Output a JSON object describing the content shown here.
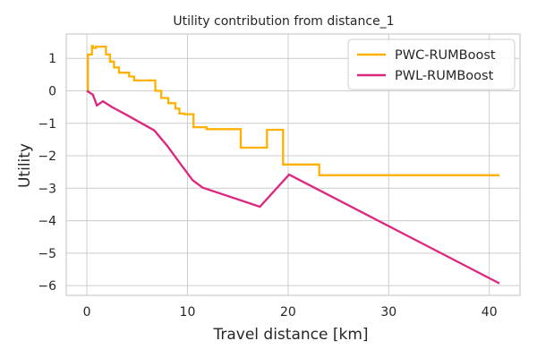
{
  "chart_data": {
    "type": "line",
    "title": "Utility contribution from distance_1",
    "xlabel": "Travel distance [km]",
    "ylabel": "Utility",
    "xlim": [
      -2.05,
      43.05
    ],
    "ylim": [
      -6.3,
      1.75
    ],
    "xticks": [
      0,
      10,
      20,
      30,
      40
    ],
    "xtick_labels": [
      "0",
      "10",
      "20",
      "30",
      "40"
    ],
    "yticks": [
      1,
      0,
      -1,
      -2,
      -3,
      -4,
      -5,
      -6
    ],
    "ytick_labels": [
      "1",
      "0",
      "−1",
      "−2",
      "−3",
      "−4",
      "−5",
      "−6"
    ],
    "grid": true,
    "legend_position": "top-right",
    "series": [
      {
        "name": "PWC-RUMBoost",
        "color": "#FFB000",
        "step": true,
        "x": [
          0,
          0.1,
          0.5,
          0.6,
          0.9,
          1.9,
          2.3,
          2.7,
          3.2,
          4.2,
          4.7,
          6.8,
          7.4,
          8.1,
          8.8,
          9.2,
          9.7,
          10.6,
          11.9,
          15.3,
          17.9,
          19.5,
          23.1,
          41
        ],
        "y": [
          0,
          1.12,
          1.38,
          1.32,
          1.36,
          1.12,
          0.9,
          0.72,
          0.56,
          0.44,
          0.32,
          0.0,
          -0.22,
          -0.38,
          -0.55,
          -0.7,
          -0.72,
          -1.12,
          -1.18,
          -1.75,
          -1.2,
          -2.27,
          -2.6,
          -2.6
        ]
      },
      {
        "name": "PWL-RUMBoost",
        "color": "#DC267F",
        "step": false,
        "x": [
          0,
          0.6,
          1.0,
          1.6,
          2.5,
          4.0,
          6.7,
          8.0,
          9.3,
          10.5,
          11.5,
          17.2,
          20.1,
          41
        ],
        "y": [
          0,
          -0.12,
          -0.45,
          -0.32,
          -0.5,
          -0.75,
          -1.22,
          -1.7,
          -2.25,
          -2.75,
          -2.98,
          -3.57,
          -2.58,
          -5.93
        ]
      }
    ]
  }
}
